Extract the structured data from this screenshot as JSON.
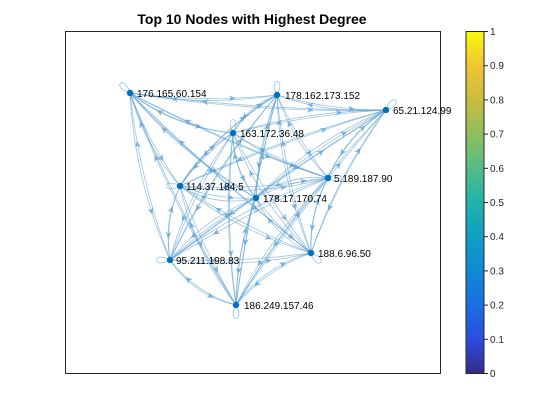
{
  "figure": {
    "title": "Top 10 Nodes with Highest Degree"
  },
  "graph": {
    "nodes": [
      {
        "id": "n176",
        "label": "176.165.60.154"
      },
      {
        "id": "n178",
        "label": "178.162.173.152"
      },
      {
        "id": "n65",
        "label": "65.21.124.99"
      },
      {
        "id": "n163",
        "label": "163.172.36.48"
      },
      {
        "id": "n114",
        "label": "114.37.184.5"
      },
      {
        "id": "n5",
        "label": "5.189.187.90"
      },
      {
        "id": "n17",
        "label": "178.17.170.74"
      },
      {
        "id": "n95",
        "label": "95.211.198.83"
      },
      {
        "id": "n188",
        "label": "188.6.96.50"
      },
      {
        "id": "n186",
        "label": "186.249.157.46"
      }
    ],
    "edge_color": "#5a9fd4",
    "node_color": "#0072bd"
  },
  "colorbar": {
    "ticks": [
      "0",
      "0.1",
      "0.2",
      "0.3",
      "0.4",
      "0.5",
      "0.6",
      "0.7",
      "0.8",
      "0.9",
      "1"
    ],
    "colormap": "parula"
  }
}
